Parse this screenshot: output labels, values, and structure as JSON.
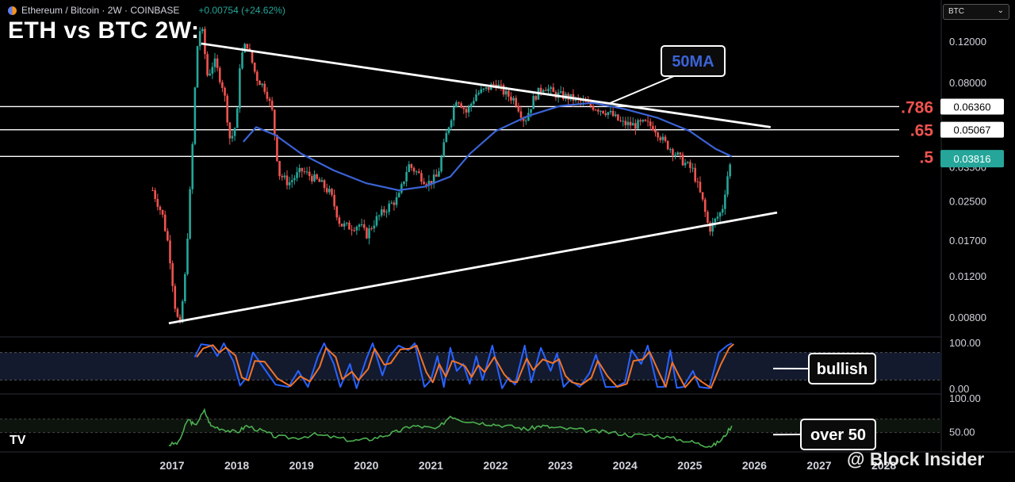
{
  "header": {
    "symbol": "Ethereum / Bitcoin · 2W · COINBASE",
    "change": "+0.00754 (+24.62%)",
    "title": "ETH vs BTC 2W:",
    "currency": "BTC"
  },
  "watermark": "@ Block Insider",
  "tv_logo": "TV",
  "colors": {
    "up": "#26a69a",
    "down": "#ef5350",
    "ma": "#3b63d6",
    "fib_label": "#ef5350",
    "stoch_k": "#2962ff",
    "stoch_d": "#f0732a",
    "rsi": "#4caf50",
    "price_tag": "#26a69a"
  },
  "chart_data": {
    "type": "candlestick",
    "title": "ETH vs BTC 2W:",
    "x_ticks": [
      "2017",
      "2018",
      "2019",
      "2020",
      "2021",
      "2022",
      "2023",
      "2024",
      "2025",
      "2026",
      "2027",
      "2028"
    ],
    "y_ticks": [
      "0.12000",
      "0.08000",
      "0.06360",
      "0.05067",
      "0.03816",
      "0.03500",
      "0.02500",
      "0.01700",
      "0.01200",
      "0.00800"
    ],
    "y_scale": "log",
    "ylim": [
      0.0068,
      0.17
    ],
    "current_price": "0.03816",
    "fib_levels": [
      {
        "label": ".786",
        "value": 0.0636,
        "tag": "0.06360"
      },
      {
        "label": ".65",
        "value": 0.05067,
        "tag": "0.05067"
      },
      {
        "label": ".5",
        "value": 0.039,
        "tag": ""
      }
    ],
    "trendlines": [
      {
        "name": "upper",
        "from": [
          2017.45,
          0.118
        ],
        "to": [
          2026.25,
          0.052
        ]
      },
      {
        "name": "lower",
        "from": [
          2016.95,
          0.0076
        ],
        "to": [
          2026.35,
          0.0225
        ]
      }
    ],
    "annotations": [
      {
        "text": "50MA",
        "target": [
          2023.75,
          0.0655
        ]
      },
      {
        "text": "bullish",
        "panel": "stoch"
      },
      {
        "text": "over 50",
        "panel": "rsi"
      }
    ],
    "price_anchors": [
      [
        2016.7,
        0.028
      ],
      [
        2016.85,
        0.022
      ],
      [
        2016.95,
        0.016
      ],
      [
        2017.05,
        0.0088
      ],
      [
        2017.12,
        0.0072
      ],
      [
        2017.2,
        0.012
      ],
      [
        2017.3,
        0.035
      ],
      [
        2017.38,
        0.11
      ],
      [
        2017.45,
        0.145
      ],
      [
        2017.55,
        0.085
      ],
      [
        2017.65,
        0.1
      ],
      [
        2017.8,
        0.075
      ],
      [
        2017.9,
        0.045
      ],
      [
        2018.0,
        0.055
      ],
      [
        2018.05,
        0.1
      ],
      [
        2018.15,
        0.12
      ],
      [
        2018.3,
        0.085
      ],
      [
        2018.45,
        0.075
      ],
      [
        2018.55,
        0.06
      ],
      [
        2018.65,
        0.033
      ],
      [
        2018.8,
        0.03
      ],
      [
        2019.0,
        0.034
      ],
      [
        2019.15,
        0.032
      ],
      [
        2019.3,
        0.03
      ],
      [
        2019.45,
        0.027
      ],
      [
        2019.6,
        0.02
      ],
      [
        2019.75,
        0.0195
      ],
      [
        2019.9,
        0.02
      ],
      [
        2020.0,
        0.018
      ],
      [
        2020.15,
        0.021
      ],
      [
        2020.35,
        0.024
      ],
      [
        2020.5,
        0.026
      ],
      [
        2020.65,
        0.036
      ],
      [
        2020.8,
        0.033
      ],
      [
        2020.95,
        0.03
      ],
      [
        2021.1,
        0.032
      ],
      [
        2021.25,
        0.05
      ],
      [
        2021.4,
        0.07
      ],
      [
        2021.55,
        0.06
      ],
      [
        2021.7,
        0.072
      ],
      [
        2021.85,
        0.075
      ],
      [
        2022.0,
        0.08
      ],
      [
        2022.15,
        0.072
      ],
      [
        2022.3,
        0.068
      ],
      [
        2022.45,
        0.055
      ],
      [
        2022.6,
        0.07
      ],
      [
        2022.75,
        0.078
      ],
      [
        2022.9,
        0.072
      ],
      [
        2023.1,
        0.07
      ],
      [
        2023.3,
        0.067
      ],
      [
        2023.55,
        0.063
      ],
      [
        2023.75,
        0.06
      ],
      [
        2023.95,
        0.054
      ],
      [
        2024.15,
        0.053
      ],
      [
        2024.3,
        0.054
      ],
      [
        2024.45,
        0.052
      ],
      [
        2024.6,
        0.045
      ],
      [
        2024.75,
        0.041
      ],
      [
        2024.9,
        0.037
      ],
      [
        2025.05,
        0.034
      ],
      [
        2025.2,
        0.025
      ],
      [
        2025.3,
        0.019
      ],
      [
        2025.4,
        0.021
      ],
      [
        2025.5,
        0.023
      ],
      [
        2025.58,
        0.032
      ],
      [
        2025.65,
        0.0382
      ]
    ],
    "ma_points": [
      [
        2018.1,
        0.045
      ],
      [
        2018.3,
        0.052
      ],
      [
        2018.6,
        0.048
      ],
      [
        2019.0,
        0.04
      ],
      [
        2019.5,
        0.034
      ],
      [
        2020.0,
        0.03
      ],
      [
        2020.5,
        0.028
      ],
      [
        2020.9,
        0.029
      ],
      [
        2021.3,
        0.032
      ],
      [
        2021.6,
        0.04
      ],
      [
        2022.0,
        0.05
      ],
      [
        2022.5,
        0.058
      ],
      [
        2023.0,
        0.064
      ],
      [
        2023.5,
        0.066
      ],
      [
        2024.0,
        0.062
      ],
      [
        2024.5,
        0.057
      ],
      [
        2025.0,
        0.05
      ],
      [
        2025.4,
        0.042
      ],
      [
        2025.65,
        0.039
      ]
    ],
    "stoch": {
      "ylim": [
        0,
        100
      ],
      "y_ticks": [
        "100.00",
        "0.00"
      ],
      "levels": [
        80,
        20
      ],
      "k_anchors": [
        [
          2017.35,
          70
        ],
        [
          2017.45,
          98
        ],
        [
          2017.6,
          95
        ],
        [
          2017.7,
          72
        ],
        [
          2017.8,
          100
        ],
        [
          2017.95,
          60
        ],
        [
          2018.05,
          8
        ],
        [
          2018.15,
          25
        ],
        [
          2018.25,
          80
        ],
        [
          2018.4,
          50
        ],
        [
          2018.6,
          10
        ],
        [
          2018.8,
          5
        ],
        [
          2018.95,
          40
        ],
        [
          2019.1,
          5
        ],
        [
          2019.25,
          70
        ],
        [
          2019.35,
          100
        ],
        [
          2019.5,
          55
        ],
        [
          2019.6,
          5
        ],
        [
          2019.75,
          55
        ],
        [
          2019.85,
          2
        ],
        [
          2020.0,
          65
        ],
        [
          2020.1,
          100
        ],
        [
          2020.25,
          30
        ],
        [
          2020.35,
          70
        ],
        [
          2020.5,
          95
        ],
        [
          2020.65,
          85
        ],
        [
          2020.75,
          100
        ],
        [
          2020.9,
          5
        ],
        [
          2021.0,
          20
        ],
        [
          2021.1,
          72
        ],
        [
          2021.2,
          5
        ],
        [
          2021.3,
          90
        ],
        [
          2021.4,
          40
        ],
        [
          2021.5,
          55
        ],
        [
          2021.6,
          12
        ],
        [
          2021.7,
          72
        ],
        [
          2021.8,
          20
        ],
        [
          2021.95,
          95
        ],
        [
          2022.1,
          2
        ],
        [
          2022.2,
          25
        ],
        [
          2022.3,
          10
        ],
        [
          2022.45,
          95
        ],
        [
          2022.55,
          15
        ],
        [
          2022.7,
          90
        ],
        [
          2022.85,
          40
        ],
        [
          2022.95,
          78
        ],
        [
          2023.05,
          5
        ],
        [
          2023.15,
          20
        ],
        [
          2023.3,
          5
        ],
        [
          2023.45,
          35
        ],
        [
          2023.55,
          75
        ],
        [
          2023.7,
          5
        ],
        [
          2023.85,
          5
        ],
        [
          2024.0,
          15
        ],
        [
          2024.1,
          85
        ],
        [
          2024.25,
          55
        ],
        [
          2024.35,
          95
        ],
        [
          2024.5,
          5
        ],
        [
          2024.6,
          5
        ],
        [
          2024.7,
          85
        ],
        [
          2024.8,
          3
        ],
        [
          2024.9,
          5
        ],
        [
          2025.05,
          40
        ],
        [
          2025.15,
          5
        ],
        [
          2025.3,
          2
        ],
        [
          2025.45,
          80
        ],
        [
          2025.58,
          95
        ],
        [
          2025.65,
          100
        ]
      ]
    },
    "rsi": {
      "ylim": [
        25,
        100
      ],
      "y_ticks": [
        "100.00",
        "50.00"
      ],
      "levels": [
        70,
        50
      ],
      "anchors": [
        [
          2016.95,
          32
        ],
        [
          2017.1,
          35
        ],
        [
          2017.25,
          70
        ],
        [
          2017.35,
          60
        ],
        [
          2017.5,
          82
        ],
        [
          2017.6,
          60
        ],
        [
          2017.8,
          55
        ],
        [
          2018.0,
          50
        ],
        [
          2018.15,
          60
        ],
        [
          2018.4,
          52
        ],
        [
          2018.6,
          44
        ],
        [
          2018.9,
          42
        ],
        [
          2019.2,
          47
        ],
        [
          2019.5,
          43
        ],
        [
          2019.8,
          38
        ],
        [
          2020.05,
          40
        ],
        [
          2020.3,
          46
        ],
        [
          2020.5,
          52
        ],
        [
          2020.7,
          60
        ],
        [
          2020.9,
          58
        ],
        [
          2021.1,
          55
        ],
        [
          2021.3,
          75
        ],
        [
          2021.5,
          68
        ],
        [
          2021.8,
          64
        ],
        [
          2022.0,
          62
        ],
        [
          2022.3,
          58
        ],
        [
          2022.5,
          55
        ],
        [
          2022.7,
          60
        ],
        [
          2022.9,
          57
        ],
        [
          2023.2,
          55
        ],
        [
          2023.5,
          52
        ],
        [
          2023.8,
          50
        ],
        [
          2024.1,
          46
        ],
        [
          2024.4,
          47
        ],
        [
          2024.7,
          42
        ],
        [
          2025.0,
          37
        ],
        [
          2025.2,
          32
        ],
        [
          2025.35,
          30
        ],
        [
          2025.5,
          40
        ],
        [
          2025.65,
          60
        ]
      ]
    }
  }
}
